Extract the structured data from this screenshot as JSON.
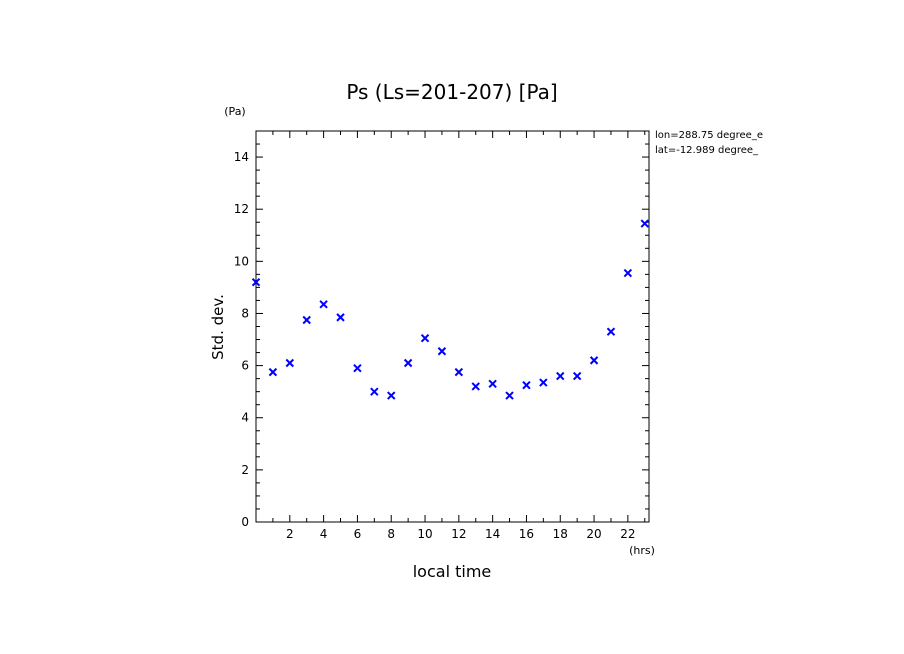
{
  "chart_data": {
    "type": "scatter",
    "title": "Ps (Ls=201-207) [Pa]",
    "xlabel": "local time",
    "ylabel": "Std. dev.",
    "x_unit": "(hrs)",
    "y_unit": "(Pa)",
    "xlim": [
      0,
      23.25
    ],
    "ylim": [
      0,
      15
    ],
    "x_ticks": [
      2,
      4,
      6,
      8,
      10,
      12,
      14,
      16,
      18,
      20,
      22
    ],
    "y_ticks": [
      0,
      2,
      4,
      6,
      8,
      10,
      12,
      14
    ],
    "marker": "x",
    "marker_color": "#0000ff",
    "grid": false,
    "annotations": [
      "lon=288.75 degree_e",
      "lat=-12.989 degree_"
    ],
    "series": [
      {
        "x": [
          0.0,
          1.0,
          2.0,
          3.0,
          4.0,
          5.0,
          6.0,
          7.0,
          8.0,
          9.0,
          10.0,
          11.0,
          12.0,
          13.0,
          14.0,
          15.0,
          16.0,
          17.0,
          18.0,
          19.0,
          20.0,
          21.0,
          22.0,
          23.0
        ],
        "y": [
          9.2,
          5.75,
          6.1,
          7.75,
          8.35,
          7.85,
          5.9,
          5.0,
          4.85,
          6.1,
          7.05,
          6.55,
          5.75,
          5.2,
          5.3,
          4.85,
          5.25,
          5.35,
          5.6,
          5.6,
          6.2,
          7.3,
          9.55,
          11.45
        ]
      }
    ]
  }
}
